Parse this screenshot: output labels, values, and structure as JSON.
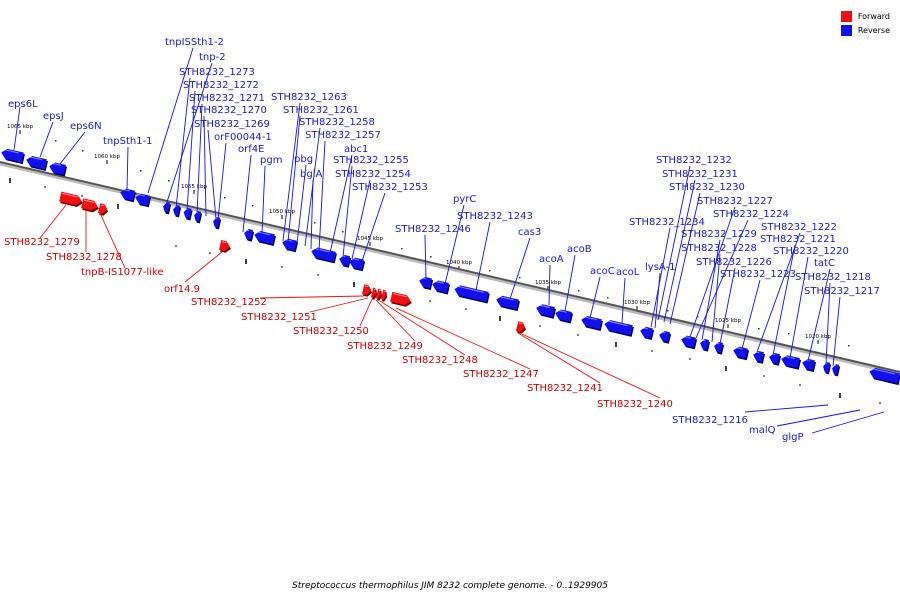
{
  "title": "Streptococcus thermophilus JIM 8232 complete genome. - 0..1929905",
  "legend": {
    "forward_label": "Forward",
    "reverse_label": "Reverse"
  },
  "colors": {
    "forward": "#ee1111",
    "reverse": "#1111ee",
    "forward_text": "#cc0000",
    "reverse_text": "#1a1acc",
    "backbone": "#555555"
  },
  "scale": {
    "range_kbp": [
      1068,
      1013
    ],
    "tick_labels": [
      "1065 kbp",
      "1060 kbp",
      "1055 kbp",
      "1050 kbp",
      "1045 kbp",
      "1040 kbp",
      "1035 kbp",
      "1030 kbp",
      "1025 kbp",
      "1020 kbp"
    ]
  },
  "reverse_labels": [
    "eps6L",
    "epsJ",
    "eps6N",
    "tnpSth1-1",
    "tnpISSth1-2",
    "tnp-2",
    "STH8232_1273",
    "STH8232_1272",
    "STH8232_1271",
    "STH8232_1270",
    "STH8232_1269",
    "orF00044-1",
    "orf4E",
    "pgm",
    "STH8232_1263",
    "STH8232_1261",
    "STH8232_1258",
    "pbg",
    "STH8232_1257",
    "bglA",
    "abc1",
    "STH8232_1255",
    "STH8232_1254",
    "STH8232_1253",
    "STH8232_1246",
    "pyrC",
    "STH8232_1243",
    "cas3",
    "acoA",
    "acoB",
    "acoC",
    "acoL",
    "STH8232_1232",
    "STH8232_1231",
    "STH8232_1230",
    "STH8232_1234",
    "lysA-1",
    "STH8232_1227",
    "STH8232_1224",
    "STH8232_1229",
    "STH8232_1228",
    "STH8232_1226",
    "STH8232_1223",
    "STH8232_1222",
    "STH8232_1221",
    "STH8232_1220",
    "tatC",
    "STH8232_1218",
    "STH8232_1217",
    "STH8232_1216",
    "malQ",
    "glgP"
  ],
  "forward_labels": [
    "STH8232_1279",
    "STH8232_1278",
    "tnpB-IS1077-like",
    "orf14.9",
    "STH8232_1252",
    "STH8232_1251",
    "STH8232_1250",
    "STH8232_1249",
    "STH8232_1248",
    "STH8232_1247",
    "STH8232_1241",
    "STH8232_1240"
  ]
}
